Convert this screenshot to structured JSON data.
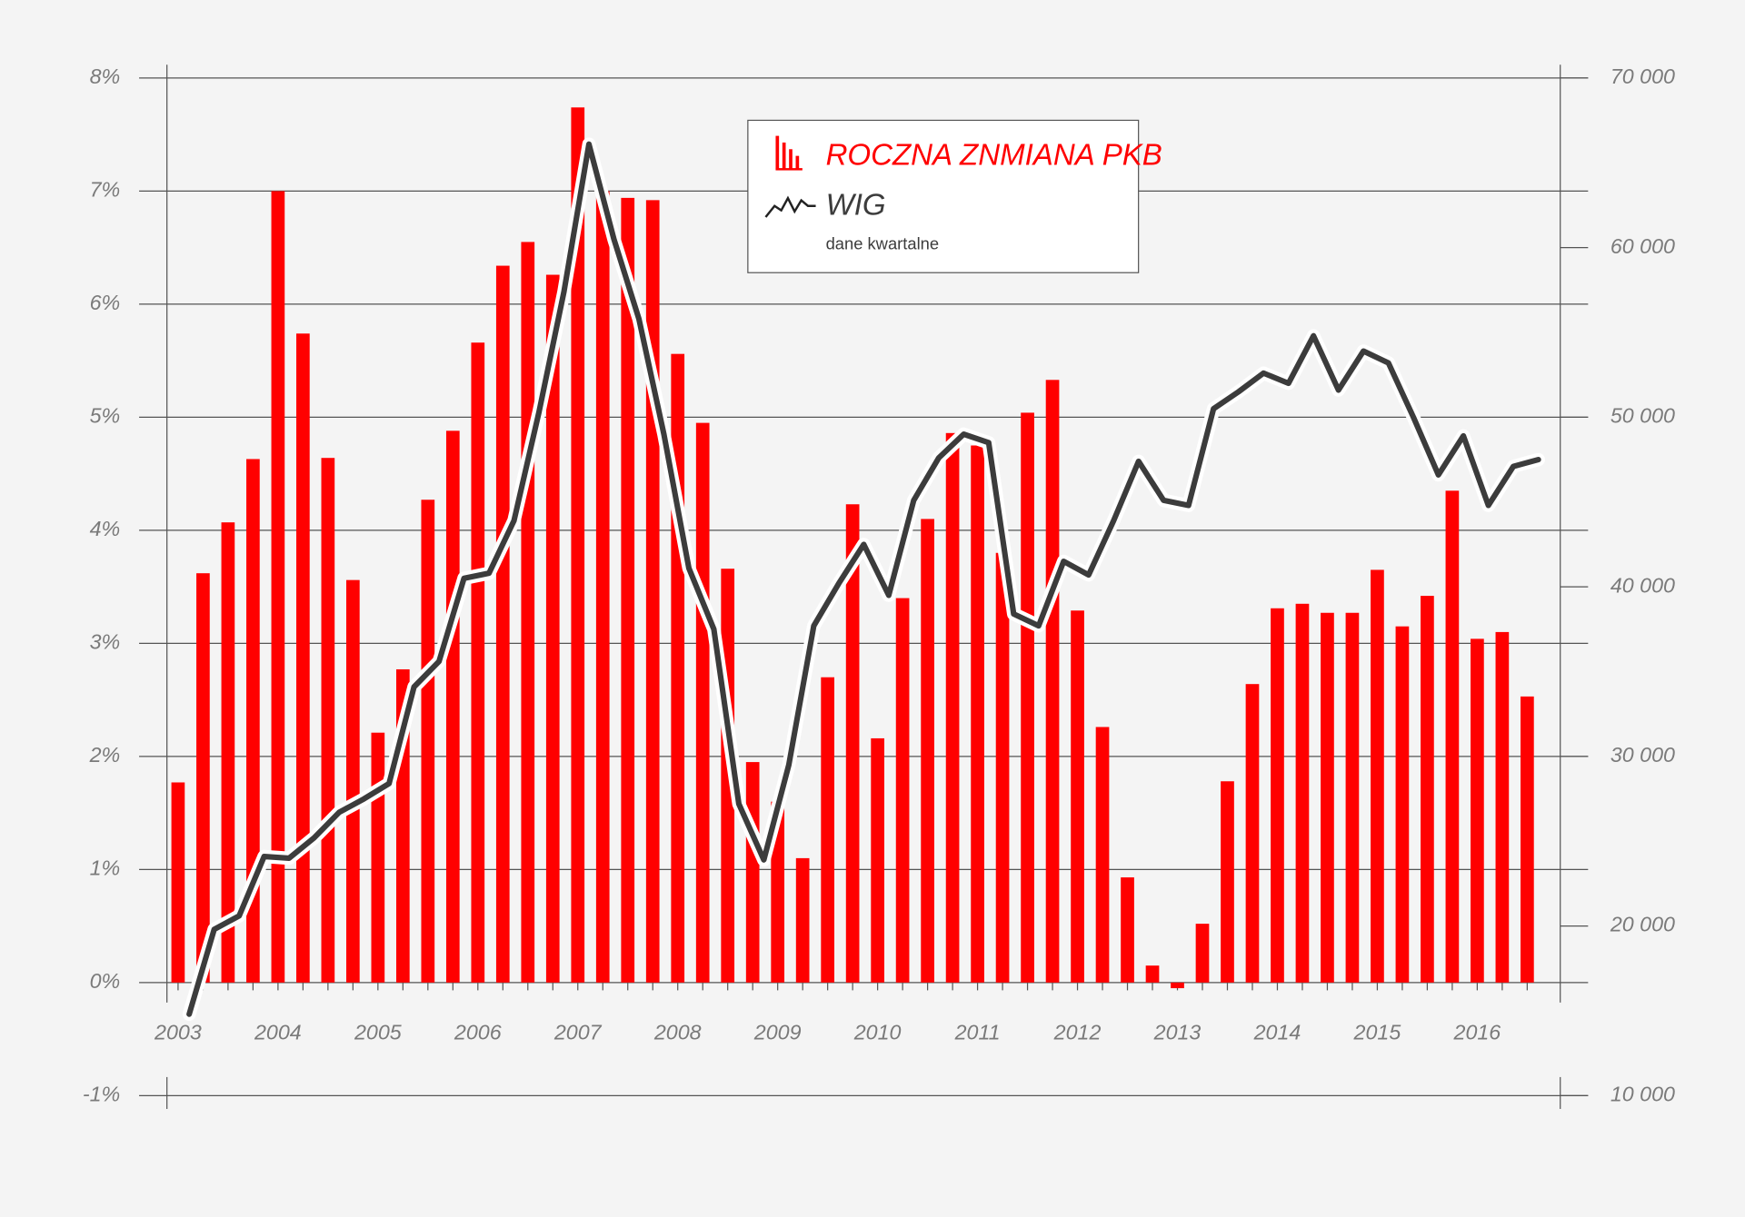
{
  "chart_data": {
    "type": "bar-line",
    "note": "dane kwartalne",
    "categories": [
      "2003",
      null,
      null,
      null,
      "2004",
      null,
      null,
      null,
      "2005",
      null,
      null,
      null,
      "2006",
      null,
      null,
      null,
      "2007",
      null,
      null,
      null,
      "2008",
      null,
      null,
      null,
      "2009",
      null,
      null,
      null,
      "2010",
      null,
      null,
      null,
      "2011",
      null,
      null,
      null,
      "2012",
      null,
      null,
      null,
      "2013",
      null,
      null,
      null,
      "2014",
      null,
      null,
      null,
      "2015",
      null,
      null,
      null,
      "2016",
      null,
      null
    ],
    "series": [
      {
        "name": "ROCZNA ZNMIANA PKB",
        "type": "bar",
        "color": "#ff0000",
        "axis": "y",
        "values": [
          1.77,
          3.62,
          4.07,
          4.63,
          7.0,
          5.74,
          4.64,
          3.56,
          2.21,
          2.77,
          4.27,
          4.88,
          5.66,
          6.34,
          6.55,
          6.26,
          7.74,
          7.0,
          6.94,
          6.92,
          5.56,
          4.95,
          3.66,
          1.95,
          1.6,
          1.1,
          2.7,
          4.23,
          2.16,
          3.4,
          4.1,
          4.86,
          4.75,
          3.8,
          5.04,
          5.33,
          3.29,
          2.26,
          0.93,
          0.15,
          -0.05,
          0.52,
          1.78,
          2.64,
          3.31,
          3.35,
          3.27,
          3.27,
          3.65,
          3.15,
          3.42,
          4.35,
          3.04,
          3.1,
          2.53
        ]
      },
      {
        "name": "WIG",
        "type": "line",
        "color": "#3c3c3c",
        "axis": "y2",
        "values": [
          14800,
          19800,
          20600,
          24100,
          24000,
          25200,
          26700,
          27500,
          28400,
          34100,
          35600,
          40500,
          40800,
          43900,
          50300,
          57400,
          66100,
          60500,
          55800,
          49000,
          41100,
          37500,
          27200,
          23900,
          29500,
          37700,
          40200,
          42500,
          39500,
          45100,
          47600,
          49000,
          48500,
          38400,
          37700,
          41500,
          40700,
          43900,
          47400,
          45100,
          44800,
          50500,
          51500,
          52600,
          52000,
          54800,
          51600,
          53900,
          53200,
          50000,
          46600,
          48900,
          44800,
          47100,
          47500
        ]
      }
    ],
    "ylim": [
      -1,
      8
    ],
    "yticks": [
      {
        "value": -1,
        "label": "-1%"
      },
      {
        "value": 0,
        "label": "0%"
      },
      {
        "value": 1,
        "label": "1%"
      },
      {
        "value": 2,
        "label": "2%"
      },
      {
        "value": 3,
        "label": "3%"
      },
      {
        "value": 4,
        "label": "4%"
      },
      {
        "value": 5,
        "label": "5%"
      },
      {
        "value": 6,
        "label": "6%"
      },
      {
        "value": 7,
        "label": "7%"
      },
      {
        "value": 8,
        "label": "8%"
      }
    ],
    "y2lim": [
      10000,
      70000
    ],
    "y2ticks": [
      {
        "value": 10000,
        "label": "10 000"
      },
      {
        "value": 20000,
        "label": "20 000"
      },
      {
        "value": 30000,
        "label": "30 000"
      },
      {
        "value": 40000,
        "label": "40 000"
      },
      {
        "value": 50000,
        "label": "50 000"
      },
      {
        "value": 60000,
        "label": "60 000"
      },
      {
        "value": 70000,
        "label": "70 000"
      }
    ],
    "grid": true
  }
}
